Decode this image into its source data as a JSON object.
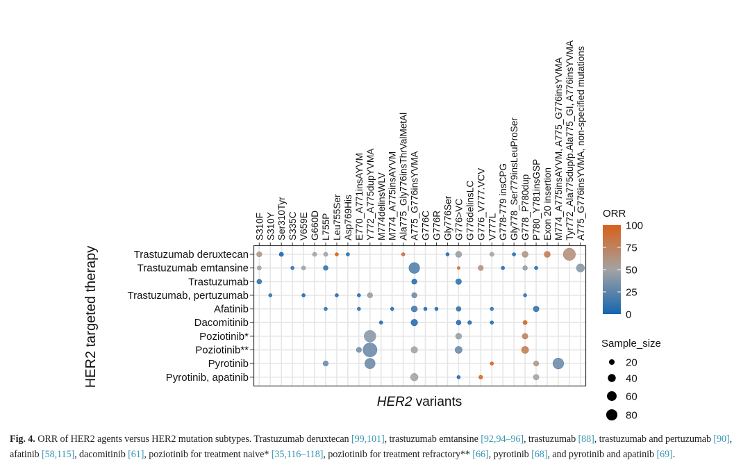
{
  "chart_data": {
    "type": "scatter",
    "subtype": "bubble-matrix",
    "xlabel_prefix_italic": "HER2",
    "xlabel_suffix": " variants",
    "ylabel": "HER2 targeted therapy",
    "grid": true,
    "legend_placement": "right",
    "columns": [
      "S310F",
      "S310Y",
      "Ser310Tyr",
      "S335C",
      "V659E",
      "G660D",
      "L755P",
      "Leu755Ser",
      "Asp769His",
      "E770_A771insAYVM",
      "Y772_A775dupYVMA",
      "M774delinsWLV",
      "M774_A775insAYVM",
      "Ala775_Gly776insThrValMetAl",
      "A775_G776insYVMA",
      "G776C",
      "G776R",
      "Gly776Ser",
      "G776>VC",
      "G776delinsLC",
      "G776_V777.VCV",
      "V777L",
      "G778-779 insCPG",
      "Gly778_Ser779insLeuProSer",
      "G778_P780dup",
      "P780_Y781insGSP",
      "Exon 20 insertion",
      "M774_A775insAYVM, A775_G776insYVMA",
      "Tyr772_Ala775dup/p.Ala775_GI, A776insYVMA",
      "A775_G776insYVMA, non-specified mutations"
    ],
    "rows": [
      "Trastuzumab deruxtecan",
      "Trastuzumab emtansine",
      "Trastuzumab",
      "Trastuzumab, pertuzumab",
      "Afatinib",
      "Dacomitinib",
      "Poziotinib*",
      "Poziotinib**",
      "Pyrotinib",
      "Pyrotinib, apatinib"
    ],
    "color_legend": {
      "title": "ORR",
      "ticks": [
        0,
        25,
        50,
        75,
        100
      ],
      "range": [
        0,
        100
      ],
      "colors": {
        "low": "#1565b0",
        "mid": "#a3a3a3",
        "high": "#d9601a"
      }
    },
    "size_legend": {
      "title": "Sample_size",
      "ticks": [
        20,
        40,
        60,
        80
      ]
    },
    "points": [
      {
        "row": "Trastuzumab deruxtecan",
        "col": "S310F",
        "orr": 60,
        "n": 17
      },
      {
        "row": "Trastuzumab deruxtecan",
        "col": "Ser310Tyr",
        "orr": 0,
        "n": 11
      },
      {
        "row": "Trastuzumab deruxtecan",
        "col": "G660D",
        "orr": 50,
        "n": 11
      },
      {
        "row": "Trastuzumab deruxtecan",
        "col": "L755P",
        "orr": 50,
        "n": 11
      },
      {
        "row": "Trastuzumab deruxtecan",
        "col": "Leu755Ser",
        "orr": 100,
        "n": 7
      },
      {
        "row": "Trastuzumab deruxtecan",
        "col": "Asp769His",
        "orr": 5,
        "n": 7
      },
      {
        "row": "Trastuzumab deruxtecan",
        "col": "Ala775_Gly776insThrValMetAl",
        "orr": 90,
        "n": 7
      },
      {
        "row": "Trastuzumab deruxtecan",
        "col": "Gly776Ser",
        "orr": 5,
        "n": 7
      },
      {
        "row": "Trastuzumab deruxtecan",
        "col": "G776>VC",
        "orr": 45,
        "n": 23
      },
      {
        "row": "Trastuzumab deruxtecan",
        "col": "V777L",
        "orr": 50,
        "n": 11
      },
      {
        "row": "Trastuzumab deruxtecan",
        "col": "Gly778_Ser779insLeuProSer",
        "orr": 5,
        "n": 7
      },
      {
        "row": "Trastuzumab deruxtecan",
        "col": "G778_P780dup",
        "orr": 60,
        "n": 23
      },
      {
        "row": "Trastuzumab deruxtecan",
        "col": "Exon 20 insertion",
        "orr": 80,
        "n": 23
      },
      {
        "row": "Trastuzumab deruxtecan",
        "col": "Tyr772_Ala775dup/p.Ala775_GI, A776insYVMA",
        "orr": 65,
        "n": 93
      },
      {
        "row": "Trastuzumab emtansine",
        "col": "S310F",
        "orr": 50,
        "n": 11
      },
      {
        "row": "Trastuzumab emtansine",
        "col": "S335C",
        "orr": 10,
        "n": 7
      },
      {
        "row": "Trastuzumab emtansine",
        "col": "V659E",
        "orr": 50,
        "n": 11
      },
      {
        "row": "Trastuzumab emtansine",
        "col": "L755P",
        "orr": 10,
        "n": 14
      },
      {
        "row": "Trastuzumab emtansine",
        "col": "A775_G776insYVMA",
        "orr": 20,
        "n": 73
      },
      {
        "row": "Trastuzumab emtansine",
        "col": "G776>VC",
        "orr": 90,
        "n": 5
      },
      {
        "row": "Trastuzumab emtansine",
        "col": "G776_V777.VCV",
        "orr": 65,
        "n": 17
      },
      {
        "row": "Trastuzumab emtansine",
        "col": "G778-779 insCPG",
        "orr": 5,
        "n": 7
      },
      {
        "row": "Trastuzumab emtansine",
        "col": "G778_P780dup",
        "orr": 45,
        "n": 14
      },
      {
        "row": "Trastuzumab emtansine",
        "col": "P780_Y781insGSP",
        "orr": 5,
        "n": 7
      },
      {
        "row": "Trastuzumab emtansine",
        "col": "A775_G776insYVMA, non-specified mutations",
        "orr": 40,
        "n": 40
      },
      {
        "row": "Trastuzumab",
        "col": "S310F",
        "orr": 10,
        "n": 14
      },
      {
        "row": "Trastuzumab",
        "col": "A775_G776insYVMA",
        "orr": 5,
        "n": 17
      },
      {
        "row": "Trastuzumab",
        "col": "G776>VC",
        "orr": 10,
        "n": 20
      },
      {
        "row": "Trastuzumab, pertuzumab",
        "col": "S310Y",
        "orr": 10,
        "n": 7
      },
      {
        "row": "Trastuzumab, pertuzumab",
        "col": "V659E",
        "orr": 5,
        "n": 7
      },
      {
        "row": "Trastuzumab, pertuzumab",
        "col": "Leu755Ser",
        "orr": 5,
        "n": 7
      },
      {
        "row": "Trastuzumab, pertuzumab",
        "col": "E770_A771insAYVM",
        "orr": 5,
        "n": 7
      },
      {
        "row": "Trastuzumab, pertuzumab",
        "col": "Y772_A775dupYVMA",
        "orr": 45,
        "n": 17
      },
      {
        "row": "Trastuzumab, pertuzumab",
        "col": "A775_G776insYVMA",
        "orr": 30,
        "n": 17
      },
      {
        "row": "Trastuzumab, pertuzumab",
        "col": "G778_P780dup",
        "orr": 10,
        "n": 7
      },
      {
        "row": "Afatinib",
        "col": "L755P",
        "orr": 10,
        "n": 7
      },
      {
        "row": "Afatinib",
        "col": "E770_A771insAYVM",
        "orr": 10,
        "n": 7
      },
      {
        "row": "Afatinib",
        "col": "M774_A775insAYVM",
        "orr": 5,
        "n": 7
      },
      {
        "row": "Afatinib",
        "col": "A775_G776insYVMA",
        "orr": 15,
        "n": 23
      },
      {
        "row": "Afatinib",
        "col": "G776C",
        "orr": 5,
        "n": 7
      },
      {
        "row": "Afatinib",
        "col": "G776R",
        "orr": 5,
        "n": 7
      },
      {
        "row": "Afatinib",
        "col": "G776>VC",
        "orr": 10,
        "n": 14
      },
      {
        "row": "Afatinib",
        "col": "V777L",
        "orr": 10,
        "n": 7
      },
      {
        "row": "Afatinib",
        "col": "P780_Y781insGSP",
        "orr": 10,
        "n": 20
      },
      {
        "row": "Dacomitinib",
        "col": "M774delinsWLV",
        "orr": 5,
        "n": 7
      },
      {
        "row": "Dacomitinib",
        "col": "A775_G776insYVMA",
        "orr": 5,
        "n": 27
      },
      {
        "row": "Dacomitinib",
        "col": "G776>VC",
        "orr": 5,
        "n": 14
      },
      {
        "row": "Dacomitinib",
        "col": "G776delinsLC",
        "orr": 5,
        "n": 9
      },
      {
        "row": "Dacomitinib",
        "col": "V777L",
        "orr": 5,
        "n": 7
      },
      {
        "row": "Dacomitinib",
        "col": "G778_P780dup",
        "orr": 95,
        "n": 11
      },
      {
        "row": "Poziotinib*",
        "col": "Y772_A775dupYVMA",
        "orr": 40,
        "n": 86
      },
      {
        "row": "Poziotinib*",
        "col": "G776>VC",
        "orr": 45,
        "n": 23
      },
      {
        "row": "Poziotinib*",
        "col": "G778_P780dup",
        "orr": 75,
        "n": 20
      },
      {
        "row": "Poziotinib**",
        "col": "E770_A771insAYVM",
        "orr": 35,
        "n": 17
      },
      {
        "row": "Poziotinib**",
        "col": "Y772_A775dupYVMA",
        "orr": 30,
        "n": 123
      },
      {
        "row": "Poziotinib**",
        "col": "A775_G776insYVMA",
        "orr": 50,
        "n": 27
      },
      {
        "row": "Poziotinib**",
        "col": "G776>VC",
        "orr": 30,
        "n": 31
      },
      {
        "row": "Poziotinib**",
        "col": "G778_P780dup",
        "orr": 80,
        "n": 31
      },
      {
        "row": "Pyrotinib",
        "col": "L755P",
        "orr": 30,
        "n": 17
      },
      {
        "row": "Pyrotinib",
        "col": "Y772_A775dupYVMA",
        "orr": 30,
        "n": 66
      },
      {
        "row": "Pyrotinib",
        "col": "V777L",
        "orr": 100,
        "n": 7
      },
      {
        "row": "Pyrotinib",
        "col": "P780_Y781insGSP",
        "orr": 60,
        "n": 17
      },
      {
        "row": "Pyrotinib",
        "col": "M774_A775insAYVM, A775_G776insYVMA",
        "orr": 30,
        "n": 73
      },
      {
        "row": "Pyrotinib, apatinib",
        "col": "A775_G776insYVMA",
        "orr": 50,
        "n": 35
      },
      {
        "row": "Pyrotinib, apatinib",
        "col": "G776>VC",
        "orr": 5,
        "n": 7
      },
      {
        "row": "Pyrotinib, apatinib",
        "col": "G776_V777.VCV",
        "orr": 95,
        "n": 9
      },
      {
        "row": "Pyrotinib, apatinib",
        "col": "P780_Y781insGSP",
        "orr": 50,
        "n": 20
      }
    ]
  },
  "caption": {
    "label": "Fig. 4.",
    "parts": [
      {
        "text": " ORR of HER2 agents versus HER2 mutation subtypes. Trastuzumab deruxtecan "
      },
      {
        "text": "[99,101]",
        "ref": true
      },
      {
        "text": ", trastuzumab emtansine "
      },
      {
        "text": "[92,94–96]",
        "ref": true
      },
      {
        "text": ", trastuzumab "
      },
      {
        "text": "[88]",
        "ref": true
      },
      {
        "text": ", trastuzumab and pertuzumab "
      },
      {
        "text": "[90]",
        "ref": true
      },
      {
        "text": ", afatinib "
      },
      {
        "text": "[58,115]",
        "ref": true
      },
      {
        "text": ", dacomitinib "
      },
      {
        "text": "[61]",
        "ref": true
      },
      {
        "text": ", poziotinib for treatment naive* "
      },
      {
        "text": "[35,116–118]",
        "ref": true
      },
      {
        "text": ", poziotinib for treatment refractory** "
      },
      {
        "text": "[66]",
        "ref": true
      },
      {
        "text": ", pyrotinib "
      },
      {
        "text": "[68]",
        "ref": true
      },
      {
        "text": ", and pyrotinib and apatinib "
      },
      {
        "text": "[69]",
        "ref": true
      },
      {
        "text": "."
      }
    ],
    "ref_color": "#3a97b3"
  }
}
